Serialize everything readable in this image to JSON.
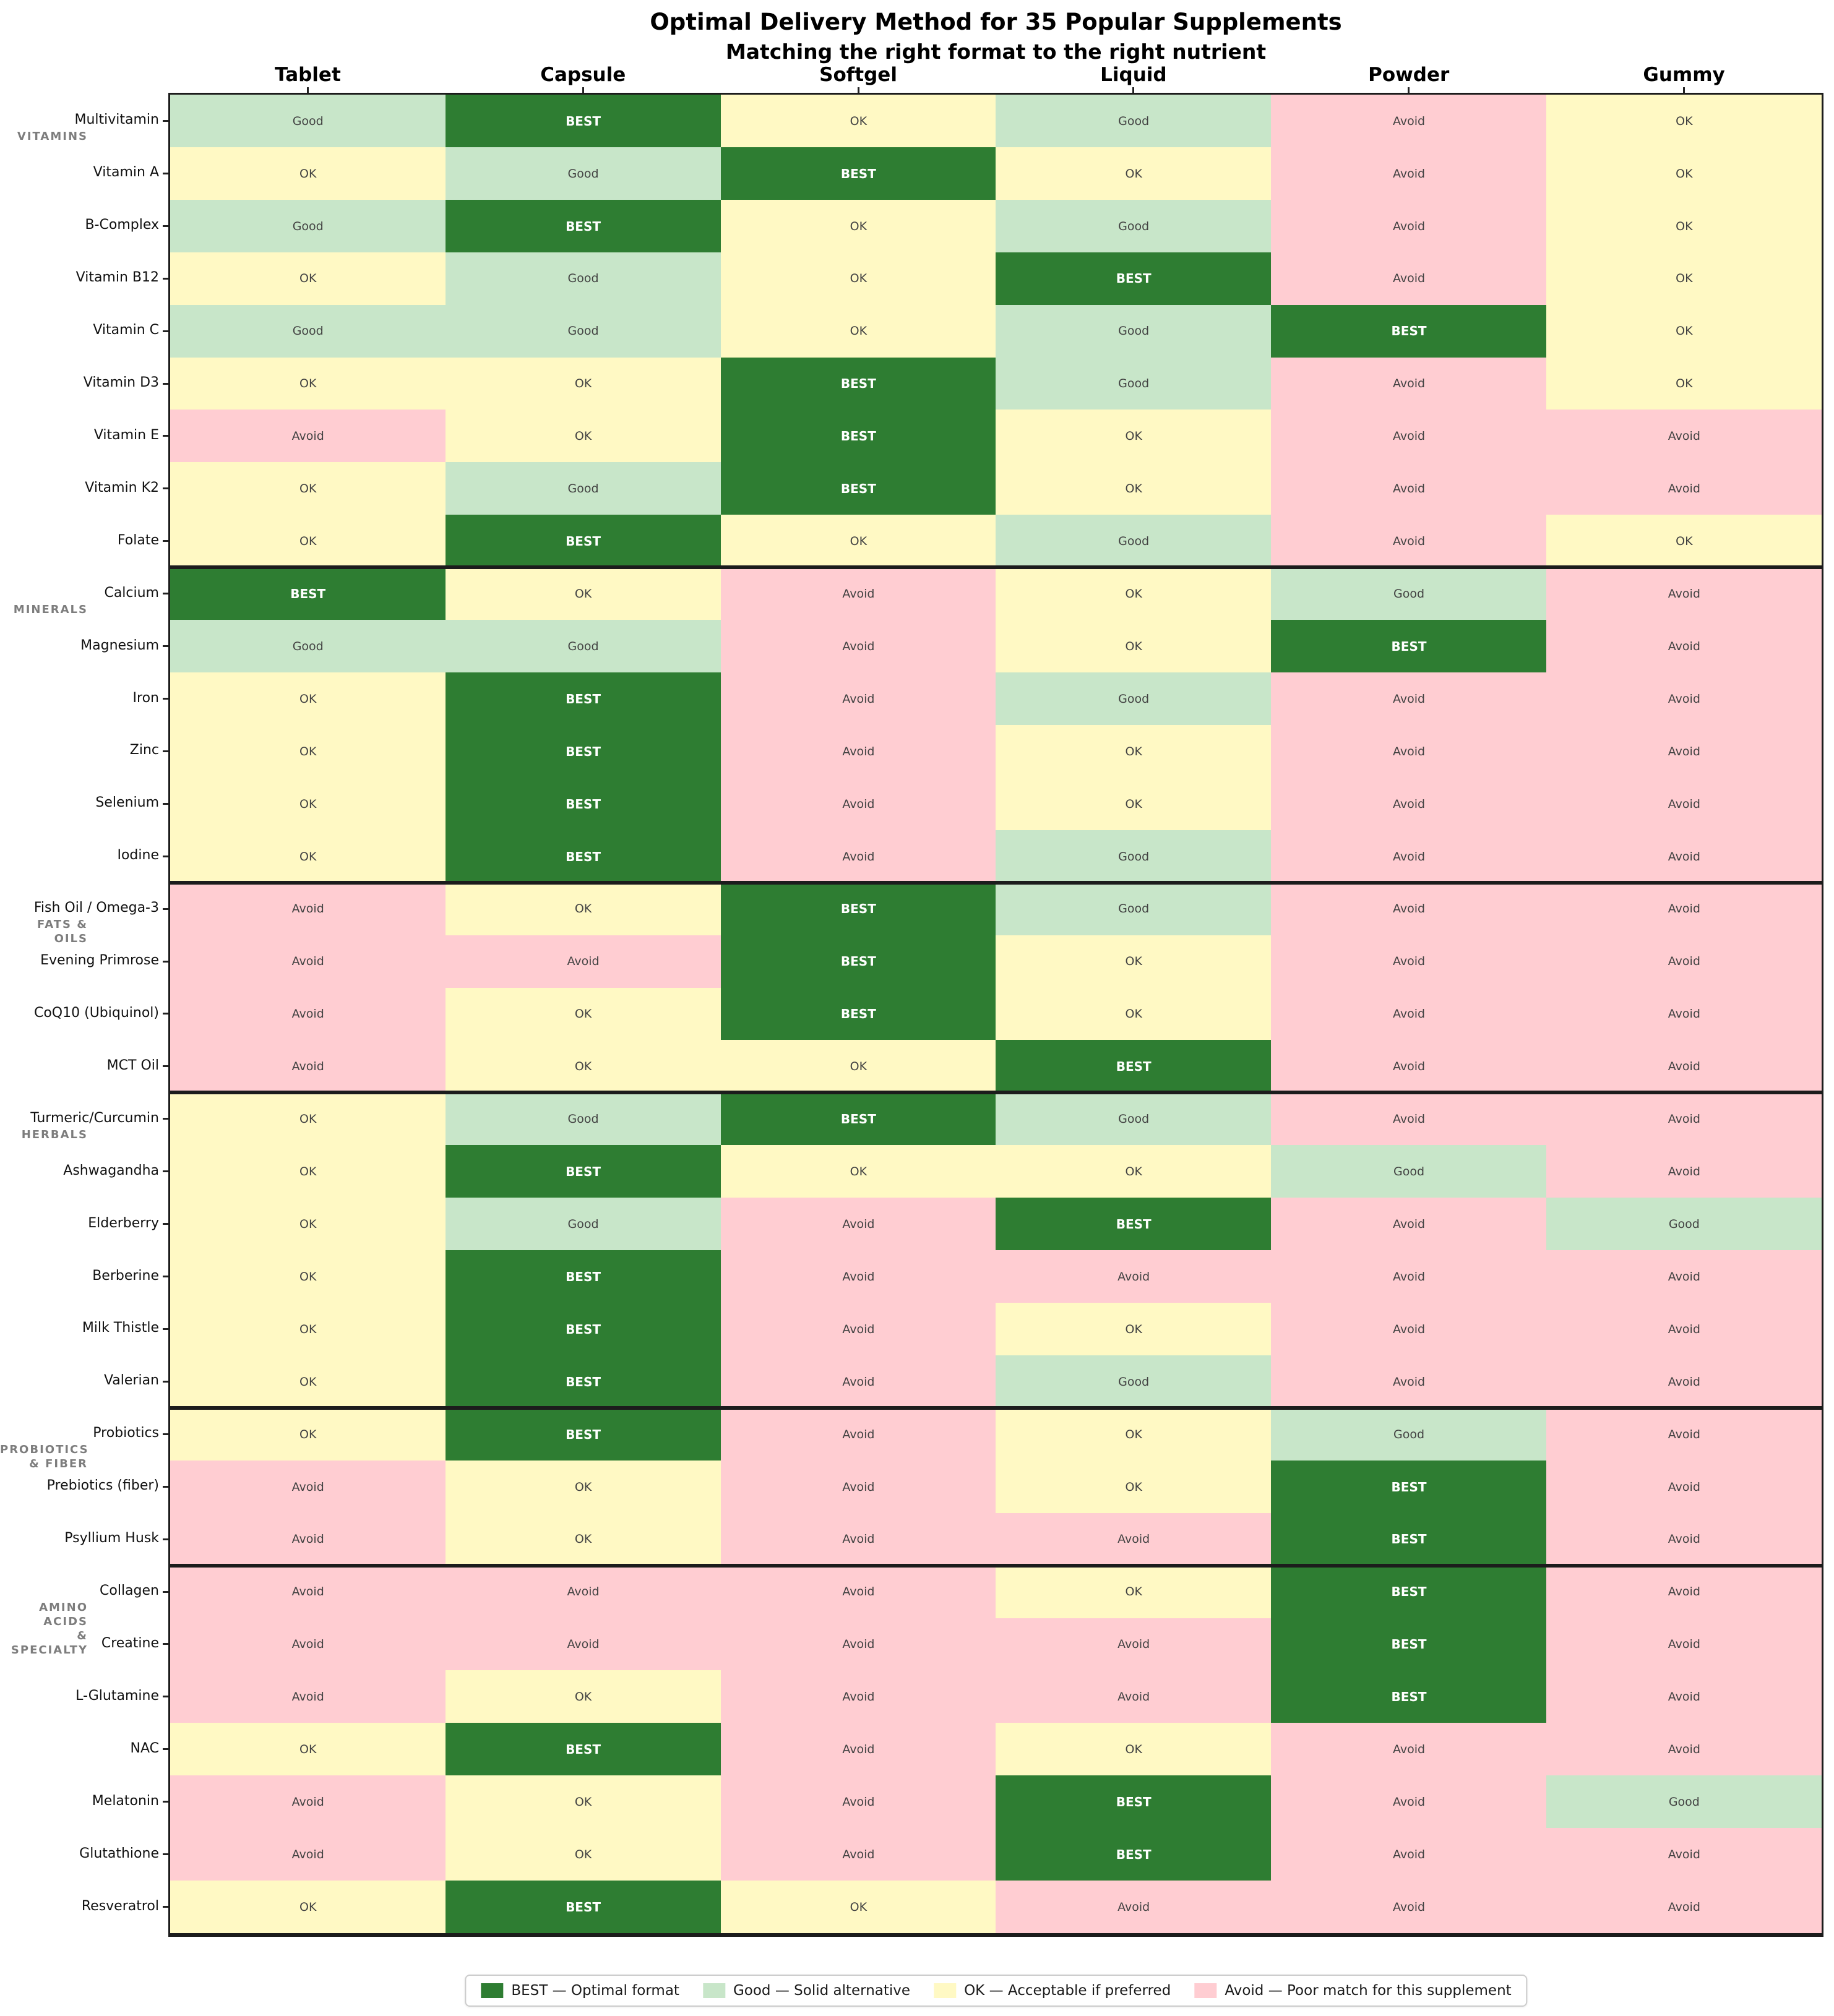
{
  "chart_data": {
    "type": "heatmap",
    "title": "Optimal Delivery Method for 35 Popular Supplements",
    "subtitle": "Matching the right format to the right nutrient",
    "columns": [
      "Tablet",
      "Capsule",
      "Softgel",
      "Liquid",
      "Powder",
      "Gummy"
    ],
    "value_scale": [
      "BEST",
      "Good",
      "OK",
      "Avoid"
    ],
    "colors": {
      "BEST": "#2e7d32",
      "Good": "#c8e6c9",
      "OK": "#fff9c4",
      "Avoid": "#ffcdd2",
      "best_text": "#ffffff",
      "cell_text": "#424242"
    },
    "groups": [
      {
        "label": "VITAMINS",
        "rows": [
          {
            "name": "Multivitamin",
            "values": [
              "Good",
              "BEST",
              "OK",
              "Good",
              "Avoid",
              "OK"
            ]
          },
          {
            "name": "Vitamin A",
            "values": [
              "OK",
              "Good",
              "BEST",
              "OK",
              "Avoid",
              "OK"
            ]
          },
          {
            "name": "B-Complex",
            "values": [
              "Good",
              "BEST",
              "OK",
              "Good",
              "Avoid",
              "OK"
            ]
          },
          {
            "name": "Vitamin B12",
            "values": [
              "OK",
              "Good",
              "OK",
              "BEST",
              "Avoid",
              "OK"
            ]
          },
          {
            "name": "Vitamin C",
            "values": [
              "Good",
              "Good",
              "OK",
              "Good",
              "BEST",
              "OK"
            ]
          },
          {
            "name": "Vitamin D3",
            "values": [
              "OK",
              "OK",
              "BEST",
              "Good",
              "Avoid",
              "OK"
            ]
          },
          {
            "name": "Vitamin E",
            "values": [
              "Avoid",
              "OK",
              "BEST",
              "OK",
              "Avoid",
              "Avoid"
            ]
          },
          {
            "name": "Vitamin K2",
            "values": [
              "OK",
              "Good",
              "BEST",
              "OK",
              "Avoid",
              "Avoid"
            ]
          },
          {
            "name": "Folate",
            "values": [
              "OK",
              "BEST",
              "OK",
              "Good",
              "Avoid",
              "OK"
            ]
          }
        ]
      },
      {
        "label": "MINERALS",
        "rows": [
          {
            "name": "Calcium",
            "values": [
              "BEST",
              "OK",
              "Avoid",
              "OK",
              "Good",
              "Avoid"
            ]
          },
          {
            "name": "Magnesium",
            "values": [
              "Good",
              "Good",
              "Avoid",
              "OK",
              "BEST",
              "Avoid"
            ]
          },
          {
            "name": "Iron",
            "values": [
              "OK",
              "BEST",
              "Avoid",
              "Good",
              "Avoid",
              "Avoid"
            ]
          },
          {
            "name": "Zinc",
            "values": [
              "OK",
              "BEST",
              "Avoid",
              "OK",
              "Avoid",
              "Avoid"
            ]
          },
          {
            "name": "Selenium",
            "values": [
              "OK",
              "BEST",
              "Avoid",
              "OK",
              "Avoid",
              "Avoid"
            ]
          },
          {
            "name": "Iodine",
            "values": [
              "OK",
              "BEST",
              "Avoid",
              "Good",
              "Avoid",
              "Avoid"
            ]
          }
        ]
      },
      {
        "label": "FATS & OILS",
        "rows": [
          {
            "name": "Fish Oil / Omega-3",
            "values": [
              "Avoid",
              "OK",
              "BEST",
              "Good",
              "Avoid",
              "Avoid"
            ]
          },
          {
            "name": "Evening Primrose",
            "values": [
              "Avoid",
              "Avoid",
              "BEST",
              "OK",
              "Avoid",
              "Avoid"
            ]
          },
          {
            "name": "CoQ10 (Ubiquinol)",
            "values": [
              "Avoid",
              "OK",
              "BEST",
              "OK",
              "Avoid",
              "Avoid"
            ]
          },
          {
            "name": "MCT Oil",
            "values": [
              "Avoid",
              "OK",
              "OK",
              "BEST",
              "Avoid",
              "Avoid"
            ]
          }
        ]
      },
      {
        "label": "HERBALS",
        "rows": [
          {
            "name": "Turmeric/Curcumin",
            "values": [
              "OK",
              "Good",
              "BEST",
              "Good",
              "Avoid",
              "Avoid"
            ]
          },
          {
            "name": "Ashwagandha",
            "values": [
              "OK",
              "BEST",
              "OK",
              "OK",
              "Good",
              "Avoid"
            ]
          },
          {
            "name": "Elderberry",
            "values": [
              "OK",
              "Good",
              "Avoid",
              "BEST",
              "Avoid",
              "Good"
            ]
          },
          {
            "name": "Berberine",
            "values": [
              "OK",
              "BEST",
              "Avoid",
              "Avoid",
              "Avoid",
              "Avoid"
            ]
          },
          {
            "name": "Milk Thistle",
            "values": [
              "OK",
              "BEST",
              "Avoid",
              "OK",
              "Avoid",
              "Avoid"
            ]
          },
          {
            "name": "Valerian",
            "values": [
              "OK",
              "BEST",
              "Avoid",
              "Good",
              "Avoid",
              "Avoid"
            ]
          }
        ]
      },
      {
        "label": "PROBIOTICS\n& FIBER",
        "rows": [
          {
            "name": "Probiotics",
            "values": [
              "OK",
              "BEST",
              "Avoid",
              "OK",
              "Good",
              "Avoid"
            ]
          },
          {
            "name": "Prebiotics (fiber)",
            "values": [
              "Avoid",
              "OK",
              "Avoid",
              "OK",
              "BEST",
              "Avoid"
            ]
          },
          {
            "name": "Psyllium Husk",
            "values": [
              "Avoid",
              "OK",
              "Avoid",
              "Avoid",
              "BEST",
              "Avoid"
            ]
          }
        ]
      },
      {
        "label": "AMINO ACIDS\n& SPECIALTY",
        "rows": [
          {
            "name": "Collagen",
            "values": [
              "Avoid",
              "Avoid",
              "Avoid",
              "OK",
              "BEST",
              "Avoid"
            ]
          },
          {
            "name": "Creatine",
            "values": [
              "Avoid",
              "Avoid",
              "Avoid",
              "Avoid",
              "BEST",
              "Avoid"
            ]
          },
          {
            "name": "L-Glutamine",
            "values": [
              "Avoid",
              "OK",
              "Avoid",
              "Avoid",
              "BEST",
              "Avoid"
            ]
          },
          {
            "name": "NAC",
            "values": [
              "OK",
              "BEST",
              "Avoid",
              "OK",
              "Avoid",
              "Avoid"
            ]
          },
          {
            "name": "Melatonin",
            "values": [
              "Avoid",
              "OK",
              "Avoid",
              "BEST",
              "Avoid",
              "Good"
            ]
          },
          {
            "name": "Glutathione",
            "values": [
              "Avoid",
              "OK",
              "Avoid",
              "BEST",
              "Avoid",
              "Avoid"
            ]
          },
          {
            "name": "Resveratrol",
            "values": [
              "OK",
              "BEST",
              "OK",
              "Avoid",
              "Avoid",
              "Avoid"
            ]
          }
        ]
      }
    ],
    "legend": [
      {
        "key": "BEST",
        "label": "BEST — Optimal format"
      },
      {
        "key": "Good",
        "label": "Good — Solid alternative"
      },
      {
        "key": "OK",
        "label": "OK — Acceptable if preferred"
      },
      {
        "key": "Avoid",
        "label": "Avoid — Poor match for this supplement"
      }
    ]
  }
}
